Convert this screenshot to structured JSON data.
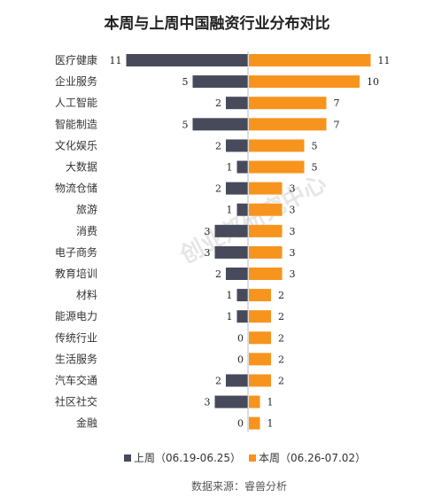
{
  "chart_data": {
    "type": "bar",
    "title": "本周与上周中国融资行业分布对比",
    "categories": [
      "医疗健康",
      "企业服务",
      "人工智能",
      "智能制造",
      "文化娱乐",
      "大数据",
      "物流仓储",
      "旅游",
      "消费",
      "电子商务",
      "教育培训",
      "材料",
      "能源电力",
      "传统行业",
      "生活服务",
      "汽车交通",
      "社区社交",
      "金融"
    ],
    "series": [
      {
        "name": "上周（06.19-06.25）",
        "color": "#474a5a",
        "values": [
          11,
          5,
          2,
          5,
          2,
          1,
          2,
          1,
          3,
          3,
          2,
          1,
          1,
          0,
          0,
          2,
          3,
          0
        ]
      },
      {
        "name": "本周（06.26-07.02）",
        "color": "#f7941d",
        "values": [
          11,
          10,
          7,
          7,
          5,
          5,
          3,
          3,
          3,
          3,
          3,
          2,
          2,
          2,
          2,
          2,
          1,
          1
        ]
      }
    ],
    "legend_position": "bottom",
    "grid": false
  },
  "source": "数据来源：睿兽分析",
  "watermark": "创业邦研究中心"
}
